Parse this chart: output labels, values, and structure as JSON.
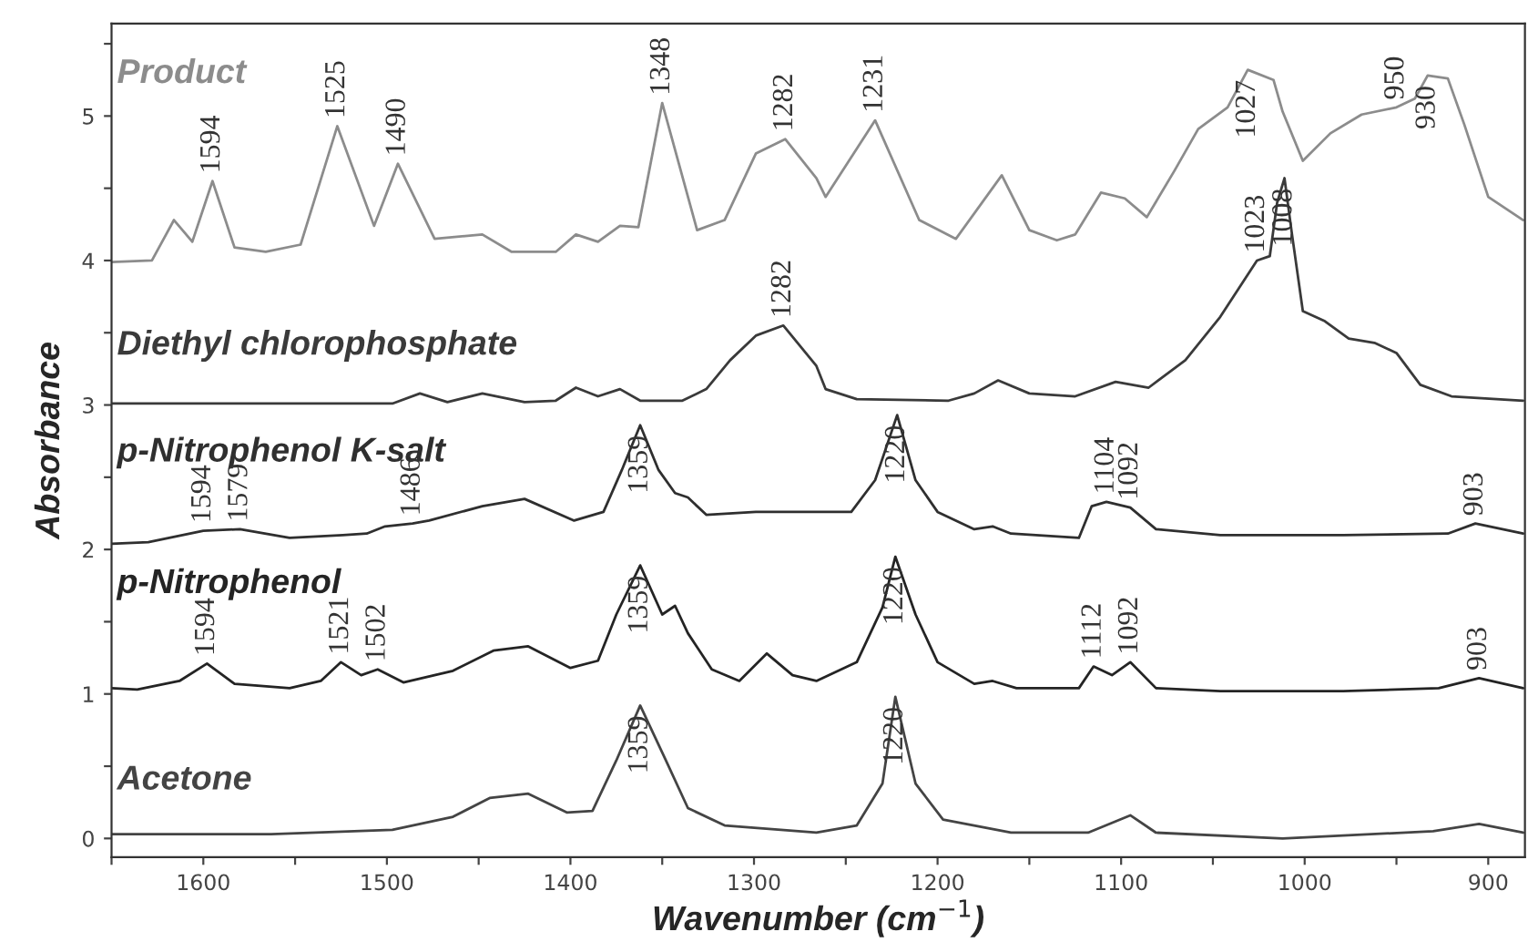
{
  "chart_data": {
    "type": "line",
    "xlabel": "Wavenumber (cm$^{−1}$)",
    "ylabel": "Absorbance",
    "xlim": [
      1650,
      880
    ],
    "ylim": [
      -0.13,
      5.64
    ],
    "xticks": [
      {
        "value": 1650,
        "label": null
      },
      1600,
      {
        "value": 1550,
        "label": null
      },
      1500,
      {
        "value": 1450,
        "label": null
      },
      1400,
      {
        "value": 1350,
        "label": null
      },
      1300,
      {
        "value": 1250,
        "label": null
      },
      1200,
      {
        "value": 1150,
        "label": null
      },
      1100,
      {
        "value": 1050,
        "label": null
      },
      1000,
      {
        "value": 950,
        "label": null
      },
      900
    ],
    "yticks": [
      0,
      {
        "value": 0.5,
        "label": null
      },
      1,
      {
        "value": 1.5,
        "label": null
      },
      2,
      {
        "value": 2.5,
        "label": null
      },
      3,
      {
        "value": 3.5,
        "label": null
      },
      4,
      {
        "value": 4.5,
        "label": null
      },
      5,
      {
        "value": 5.5,
        "label": null
      }
    ],
    "grid": false,
    "legend": false,
    "marker": "none",
    "line_style": "solid",
    "series": [
      {
        "name": "Product",
        "color": "#8c8c8c",
        "x": [
          1650,
          1628,
          1616,
          1606,
          1595,
          1583,
          1566,
          1547,
          1527,
          1507,
          1494,
          1474,
          1448,
          1432,
          1408,
          1397,
          1385,
          1373,
          1363,
          1350,
          1331,
          1316,
          1299,
          1283,
          1266,
          1261,
          1234,
          1210,
          1190,
          1165,
          1150,
          1135,
          1125,
          1111,
          1098,
          1086,
          1071,
          1058,
          1042,
          1031,
          1017,
          1012,
          1001,
          986,
          969,
          950,
          940,
          933,
          922,
          913,
          900,
          881
        ],
        "values": [
          3.99,
          4.0,
          4.28,
          4.13,
          4.55,
          4.09,
          4.06,
          4.11,
          4.93,
          4.24,
          4.67,
          4.15,
          4.18,
          4.06,
          4.06,
          4.18,
          4.13,
          4.24,
          4.23,
          5.09,
          4.21,
          4.28,
          4.74,
          4.84,
          4.57,
          4.44,
          4.97,
          4.28,
          4.15,
          4.59,
          4.21,
          4.14,
          4.18,
          4.47,
          4.43,
          4.3,
          4.62,
          4.91,
          5.06,
          5.32,
          5.25,
          5.03,
          4.69,
          4.88,
          5.01,
          5.06,
          5.12,
          5.28,
          5.26,
          4.94,
          4.44,
          4.28
        ]
      },
      {
        "name": "Diethyl chlorophosphate",
        "color": "#3a3a3a",
        "x": [
          1650,
          1497,
          1482,
          1467,
          1448,
          1425,
          1408,
          1397,
          1385,
          1373,
          1362,
          1339,
          1326,
          1313,
          1299,
          1284,
          1266,
          1261,
          1244,
          1194,
          1180,
          1167,
          1150,
          1125,
          1103,
          1085,
          1065,
          1046,
          1026,
          1019,
          1015,
          1011,
          1007,
          1001,
          989,
          976,
          962,
          950,
          937,
          920,
          881
        ],
        "values": [
          3.01,
          3.01,
          3.08,
          3.02,
          3.08,
          3.02,
          3.03,
          3.12,
          3.06,
          3.11,
          3.03,
          3.03,
          3.11,
          3.31,
          3.48,
          3.55,
          3.27,
          3.11,
          3.04,
          3.03,
          3.08,
          3.17,
          3.08,
          3.06,
          3.16,
          3.12,
          3.31,
          3.61,
          4.0,
          4.03,
          4.4,
          4.57,
          4.19,
          3.65,
          3.58,
          3.46,
          3.43,
          3.36,
          3.14,
          3.06,
          3.03
        ]
      },
      {
        "name": "p-Nitrophenol K-salt",
        "color": "#2f2f2f",
        "x": [
          1650,
          1630,
          1600,
          1580,
          1553,
          1524,
          1511,
          1501,
          1486,
          1477,
          1448,
          1425,
          1398,
          1382,
          1372,
          1362,
          1352,
          1343,
          1336,
          1326,
          1299,
          1266,
          1247,
          1234,
          1222,
          1212,
          1200,
          1180,
          1170,
          1160,
          1123,
          1116,
          1108,
          1095,
          1081,
          1046,
          979,
          922,
          907,
          881
        ],
        "values": [
          2.04,
          2.05,
          2.13,
          2.14,
          2.08,
          2.1,
          2.11,
          2.16,
          2.18,
          2.2,
          2.3,
          2.35,
          2.2,
          2.26,
          2.55,
          2.86,
          2.55,
          2.39,
          2.36,
          2.24,
          2.26,
          2.26,
          2.26,
          2.48,
          2.93,
          2.48,
          2.26,
          2.14,
          2.16,
          2.11,
          2.08,
          2.3,
          2.33,
          2.29,
          2.14,
          2.1,
          2.1,
          2.11,
          2.18,
          2.11
        ]
      },
      {
        "name": "p-Nitrophenol",
        "color": "#242424",
        "x": [
          1650,
          1636,
          1613,
          1598,
          1583,
          1553,
          1536,
          1525,
          1514,
          1505,
          1491,
          1464,
          1442,
          1423,
          1400,
          1385,
          1375,
          1362,
          1350,
          1343,
          1336,
          1323,
          1308,
          1293,
          1279,
          1266,
          1244,
          1230,
          1223,
          1212,
          1200,
          1180,
          1170,
          1157,
          1123,
          1115,
          1105,
          1095,
          1081,
          1046,
          979,
          927,
          905,
          881
        ],
        "values": [
          1.04,
          1.03,
          1.09,
          1.21,
          1.07,
          1.04,
          1.09,
          1.22,
          1.13,
          1.17,
          1.08,
          1.16,
          1.3,
          1.33,
          1.18,
          1.23,
          1.55,
          1.89,
          1.55,
          1.61,
          1.42,
          1.17,
          1.09,
          1.28,
          1.13,
          1.09,
          1.22,
          1.6,
          1.95,
          1.55,
          1.22,
          1.07,
          1.09,
          1.04,
          1.04,
          1.19,
          1.13,
          1.22,
          1.04,
          1.02,
          1.02,
          1.04,
          1.11,
          1.04
        ]
      },
      {
        "name": "Acetone",
        "color": "#444444",
        "x": [
          1650,
          1563,
          1497,
          1464,
          1444,
          1423,
          1402,
          1388,
          1375,
          1362,
          1348,
          1336,
          1316,
          1266,
          1244,
          1230,
          1223,
          1212,
          1197,
          1160,
          1118,
          1095,
          1081,
          1012,
          930,
          905,
          881
        ],
        "values": [
          0.03,
          0.03,
          0.06,
          0.15,
          0.28,
          0.31,
          0.18,
          0.19,
          0.54,
          0.92,
          0.54,
          0.21,
          0.09,
          0.04,
          0.09,
          0.38,
          0.98,
          0.38,
          0.13,
          0.04,
          0.04,
          0.16,
          0.04,
          0.0,
          0.05,
          0.1,
          0.04
        ]
      }
    ],
    "annotations": [
      {
        "text": "1594",
        "x": 1595,
        "y": 4.55
      },
      {
        "text": "1525",
        "x": 1527,
        "y": 4.93
      },
      {
        "text": "1490",
        "x": 1494,
        "y": 4.67
      },
      {
        "text": "1348",
        "x": 1350,
        "y": 5.09
      },
      {
        "text": "1282",
        "x": 1283,
        "y": 4.84
      },
      {
        "text": "1231",
        "x": 1234,
        "y": 4.97
      },
      {
        "text": "1027",
        "x": 1031,
        "y": 5.32
      },
      {
        "text": "950",
        "x": 950,
        "y": 5.06
      },
      {
        "text": "930",
        "x": 933,
        "y": 5.28
      },
      {
        "text": "1282",
        "x": 1284,
        "y": 3.55
      },
      {
        "text": "1023",
        "x": 1026,
        "y": 4.0
      },
      {
        "text": "1008",
        "x": 1011,
        "y": 4.57
      },
      {
        "text": "1594",
        "x": 1600,
        "y": 2.13
      },
      {
        "text": "1579",
        "x": 1580,
        "y": 2.14
      },
      {
        "text": "1486",
        "x": 1486,
        "y": 2.18
      },
      {
        "text": "1359",
        "x": 1362,
        "y": 2.86
      },
      {
        "text": "1220",
        "x": 1222,
        "y": 2.93
      },
      {
        "text": "1104",
        "x": 1108,
        "y": 2.33
      },
      {
        "text": "1092",
        "x": 1095,
        "y": 2.29
      },
      {
        "text": "903",
        "x": 907,
        "y": 2.18
      },
      {
        "text": "1594",
        "x": 1598,
        "y": 1.21
      },
      {
        "text": "1521",
        "x": 1525,
        "y": 1.22
      },
      {
        "text": "1502",
        "x": 1505,
        "y": 1.17
      },
      {
        "text": "1359",
        "x": 1362,
        "y": 1.89
      },
      {
        "text": "1220",
        "x": 1223,
        "y": 1.95
      },
      {
        "text": "1112",
        "x": 1115,
        "y": 1.19
      },
      {
        "text": "1092",
        "x": 1095,
        "y": 1.22
      },
      {
        "text": "903",
        "x": 905,
        "y": 1.11
      },
      {
        "text": "1359",
        "x": 1362,
        "y": 0.92
      },
      {
        "text": "1220",
        "x": 1223,
        "y": 0.98
      }
    ]
  }
}
